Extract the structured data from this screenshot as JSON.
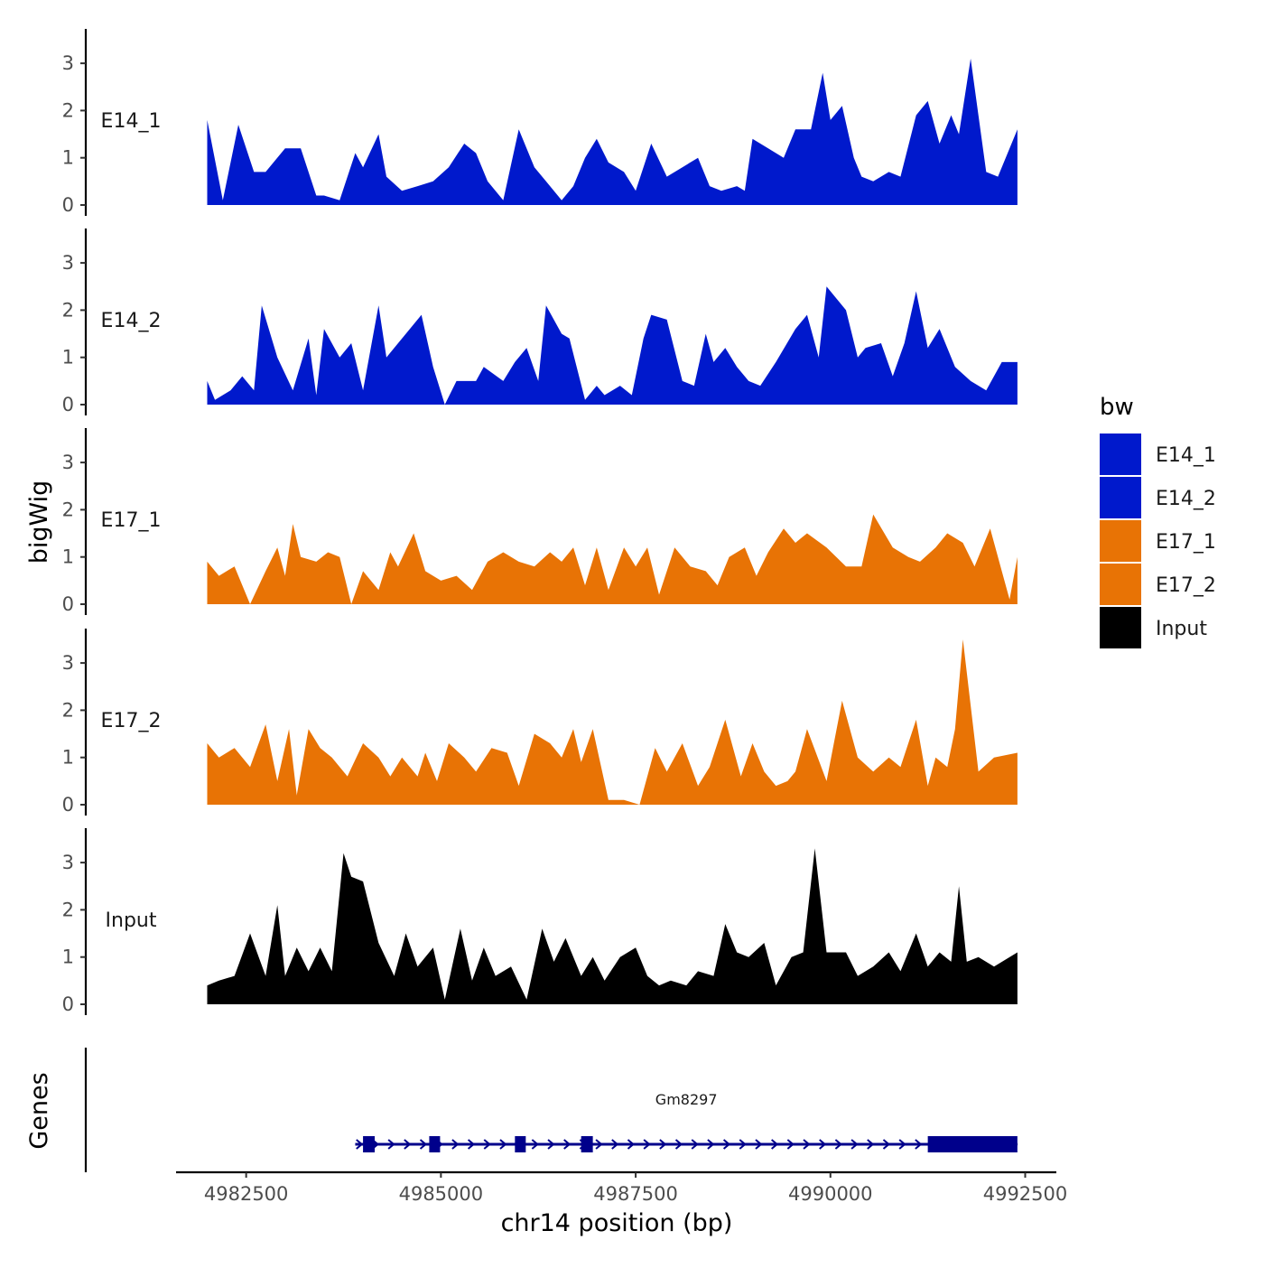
{
  "chart_data": {
    "type": "area",
    "ylabel": "bigWig",
    "xlabel": "chr14 position (bp)",
    "genes_label": "Genes",
    "ylim": [
      0,
      3.7
    ],
    "y_ticks": [
      "0",
      "1",
      "2",
      "3"
    ],
    "xlim": [
      4981600,
      4992900
    ],
    "x_ticks": [
      "4982500",
      "4985000",
      "4987500",
      "4990000",
      "4992500"
    ],
    "x_tick_values": [
      4982500,
      4985000,
      4987500,
      4990000,
      4992500
    ],
    "legend": {
      "title": "bw",
      "entries": [
        {
          "label": "E14_1",
          "color": "#0019CC"
        },
        {
          "label": "E14_2",
          "color": "#0019CC"
        },
        {
          "label": "E17_1",
          "color": "#E87305"
        },
        {
          "label": "E17_2",
          "color": "#E87305"
        },
        {
          "label": "Input",
          "color": "#000000"
        }
      ]
    },
    "tracks": [
      {
        "name": "E14_1",
        "color": "#0019CC",
        "x": [
          4982000,
          4982200,
          4982400,
          4982600,
          4982750,
          4983000,
          4983200,
          4983400,
          4983500,
          4983700,
          4983900,
          4984000,
          4984200,
          4984300,
          4984500,
          4984700,
          4984900,
          4985100,
          4985300,
          4985450,
          4985600,
          4985800,
          4986000,
          4986200,
          4986350,
          4986550,
          4986700,
          4986850,
          4987000,
          4987150,
          4987350,
          4987500,
          4987700,
          4987900,
          4988100,
          4988300,
          4988450,
          4988600,
          4988800,
          4988900,
          4989000,
          4989200,
          4989400,
          4989550,
          4989750,
          4989900,
          4990000,
          4990150,
          4990300,
          4990400,
          4990550,
          4990750,
          4990900,
          4991100,
          4991250,
          4991400,
          4991550,
          4991650,
          4991800,
          4992000,
          4992150,
          4992400
        ],
        "y": [
          1.8,
          0.1,
          1.7,
          0.7,
          0.7,
          1.2,
          1.2,
          0.2,
          0.2,
          0.1,
          1.1,
          0.8,
          1.5,
          0.6,
          0.3,
          0.4,
          0.5,
          0.8,
          1.3,
          1.1,
          0.5,
          0.1,
          1.6,
          0.8,
          0.5,
          0.1,
          0.4,
          1.0,
          1.4,
          0.9,
          0.7,
          0.3,
          1.3,
          0.6,
          0.8,
          1.0,
          0.4,
          0.3,
          0.4,
          0.3,
          1.4,
          1.2,
          1.0,
          1.6,
          1.6,
          2.8,
          1.8,
          2.1,
          1.0,
          0.6,
          0.5,
          0.7,
          0.6,
          1.9,
          2.2,
          1.3,
          1.9,
          1.5,
          3.1,
          0.7,
          0.6,
          1.6
        ]
      },
      {
        "name": "E14_2",
        "color": "#0019CC",
        "x": [
          4982000,
          4982100,
          4982300,
          4982450,
          4982600,
          4982700,
          4982900,
          4983100,
          4983300,
          4983400,
          4983500,
          4983700,
          4983850,
          4984000,
          4984200,
          4984300,
          4984550,
          4984750,
          4984900,
          4985050,
          4985200,
          4985450,
          4985550,
          4985800,
          4985950,
          4986100,
          4986250,
          4986350,
          4986550,
          4986650,
          4986850,
          4987000,
          4987100,
          4987300,
          4987450,
          4987600,
          4987700,
          4987900,
          4988100,
          4988250,
          4988400,
          4988500,
          4988650,
          4988800,
          4988950,
          4989100,
          4989300,
          4989550,
          4989700,
          4989850,
          4989950,
          4990200,
          4990350,
          4990450,
          4990650,
          4990800,
          4990950,
          4991100,
          4991250,
          4991400,
          4991600,
          4991800,
          4992000,
          4992200,
          4992400
        ],
        "y": [
          0.5,
          0.1,
          0.3,
          0.6,
          0.3,
          2.1,
          1.0,
          0.3,
          1.4,
          0.2,
          1.6,
          1.0,
          1.3,
          0.3,
          2.1,
          1.0,
          1.5,
          1.9,
          0.8,
          0.0,
          0.5,
          0.5,
          0.8,
          0.5,
          0.9,
          1.2,
          0.5,
          2.1,
          1.5,
          1.4,
          0.1,
          0.4,
          0.2,
          0.4,
          0.2,
          1.4,
          1.9,
          1.8,
          0.5,
          0.4,
          1.5,
          0.9,
          1.2,
          0.8,
          0.5,
          0.4,
          0.9,
          1.6,
          1.9,
          1.0,
          2.5,
          2.0,
          1.0,
          1.2,
          1.3,
          0.6,
          1.3,
          2.4,
          1.2,
          1.6,
          0.8,
          0.5,
          0.3,
          0.9,
          0.9
        ]
      },
      {
        "name": "E17_1",
        "color": "#E87305",
        "x": [
          4982000,
          4982150,
          4982350,
          4982550,
          4982750,
          4982900,
          4983000,
          4983100,
          4983200,
          4983400,
          4983550,
          4983700,
          4983850,
          4984000,
          4984200,
          4984350,
          4984450,
          4984650,
          4984800,
          4985000,
          4985200,
          4985400,
          4985600,
          4985800,
          4986000,
          4986200,
          4986400,
          4986550,
          4986700,
          4986850,
          4987000,
          4987150,
          4987350,
          4987500,
          4987650,
          4987800,
          4988000,
          4988200,
          4988400,
          4988550,
          4988700,
          4988900,
          4989050,
          4989200,
          4989400,
          4989550,
          4989700,
          4989950,
          4990200,
          4990400,
          4990550,
          4990800,
          4991000,
          4991150,
          4991350,
          4991500,
          4991700,
          4991850,
          4992050,
          4992300,
          4992400
        ],
        "y": [
          0.9,
          0.6,
          0.8,
          0.0,
          0.7,
          1.2,
          0.6,
          1.7,
          1.0,
          0.9,
          1.1,
          1.0,
          0.0,
          0.7,
          0.3,
          1.1,
          0.8,
          1.5,
          0.7,
          0.5,
          0.6,
          0.3,
          0.9,
          1.1,
          0.9,
          0.8,
          1.1,
          0.9,
          1.2,
          0.4,
          1.2,
          0.3,
          1.2,
          0.8,
          1.2,
          0.2,
          1.2,
          0.8,
          0.7,
          0.4,
          1.0,
          1.2,
          0.6,
          1.1,
          1.6,
          1.3,
          1.5,
          1.2,
          0.8,
          0.8,
          1.9,
          1.2,
          1.0,
          0.9,
          1.2,
          1.5,
          1.3,
          0.8,
          1.6,
          0.1,
          1.0
        ]
      },
      {
        "name": "E17_2",
        "color": "#E87305",
        "x": [
          4982000,
          4982150,
          4982350,
          4982550,
          4982750,
          4982900,
          4983050,
          4983150,
          4983300,
          4983450,
          4983600,
          4983800,
          4984000,
          4984200,
          4984350,
          4984500,
          4984700,
          4984800,
          4984950,
          4985100,
          4985300,
          4985450,
          4985650,
          4985850,
          4986000,
          4986200,
          4986400,
          4986550,
          4986700,
          4986800,
          4986950,
          4987150,
          4987350,
          4987550,
          4987750,
          4987900,
          4988100,
          4988300,
          4988450,
          4988650,
          4988850,
          4989000,
          4989150,
          4989300,
          4989450,
          4989550,
          4989700,
          4989950,
          4990150,
          4990350,
          4990550,
          4990750,
          4990900,
          4991100,
          4991250,
          4991350,
          4991500,
          4991600,
          4991700,
          4991900,
          4992100,
          4992400
        ],
        "y": [
          1.3,
          1.0,
          1.2,
          0.8,
          1.7,
          0.5,
          1.6,
          0.2,
          1.6,
          1.2,
          1.0,
          0.6,
          1.3,
          1.0,
          0.6,
          1.0,
          0.6,
          1.1,
          0.5,
          1.3,
          1.0,
          0.7,
          1.2,
          1.1,
          0.4,
          1.5,
          1.3,
          1.0,
          1.6,
          0.9,
          1.6,
          0.1,
          0.1,
          0.0,
          1.2,
          0.7,
          1.3,
          0.4,
          0.8,
          1.8,
          0.6,
          1.3,
          0.7,
          0.4,
          0.5,
          0.7,
          1.6,
          0.5,
          2.2,
          1.0,
          0.7,
          1.0,
          0.8,
          1.8,
          0.4,
          1.0,
          0.8,
          1.6,
          3.5,
          0.7,
          1.0,
          1.1
        ]
      },
      {
        "name": "Input",
        "color": "#000000",
        "x": [
          4982000,
          4982150,
          4982350,
          4982550,
          4982750,
          4982900,
          4983000,
          4983150,
          4983300,
          4983450,
          4983600,
          4983750,
          4983850,
          4984000,
          4984200,
          4984400,
          4984550,
          4984700,
          4984900,
          4985050,
          4985250,
          4985400,
          4985550,
          4985700,
          4985900,
          4986100,
          4986300,
          4986450,
          4986600,
          4986800,
          4986950,
          4987100,
          4987300,
          4987500,
          4987650,
          4987800,
          4987950,
          4988150,
          4988300,
          4988500,
          4988650,
          4988800,
          4988950,
          4989150,
          4989300,
          4989500,
          4989650,
          4989800,
          4989950,
          4990200,
          4990350,
          4990550,
          4990750,
          4990900,
          4991100,
          4991250,
          4991400,
          4991550,
          4991650,
          4991750,
          4991900,
          4992100,
          4992400
        ],
        "y": [
          0.4,
          0.5,
          0.6,
          1.5,
          0.6,
          2.1,
          0.6,
          1.2,
          0.7,
          1.2,
          0.7,
          3.2,
          2.7,
          2.6,
          1.3,
          0.6,
          1.5,
          0.8,
          1.2,
          0.1,
          1.6,
          0.5,
          1.2,
          0.6,
          0.8,
          0.1,
          1.6,
          0.9,
          1.4,
          0.6,
          1.0,
          0.5,
          1.0,
          1.2,
          0.6,
          0.4,
          0.5,
          0.4,
          0.7,
          0.6,
          1.7,
          1.1,
          1.0,
          1.3,
          0.4,
          1.0,
          1.1,
          3.3,
          1.1,
          1.1,
          0.6,
          0.8,
          1.1,
          0.7,
          1.5,
          0.8,
          1.1,
          0.9,
          2.5,
          0.9,
          1.0,
          0.8,
          1.1
        ]
      }
    ],
    "gene": {
      "name": "Gm8297",
      "start": 4983900,
      "end": 4992400,
      "exons": [
        [
          4984000,
          4984150
        ],
        [
          4984850,
          4984950
        ],
        [
          4985950,
          4986050
        ],
        [
          4986800,
          4986950
        ],
        [
          4991250,
          4992400
        ]
      ]
    }
  }
}
